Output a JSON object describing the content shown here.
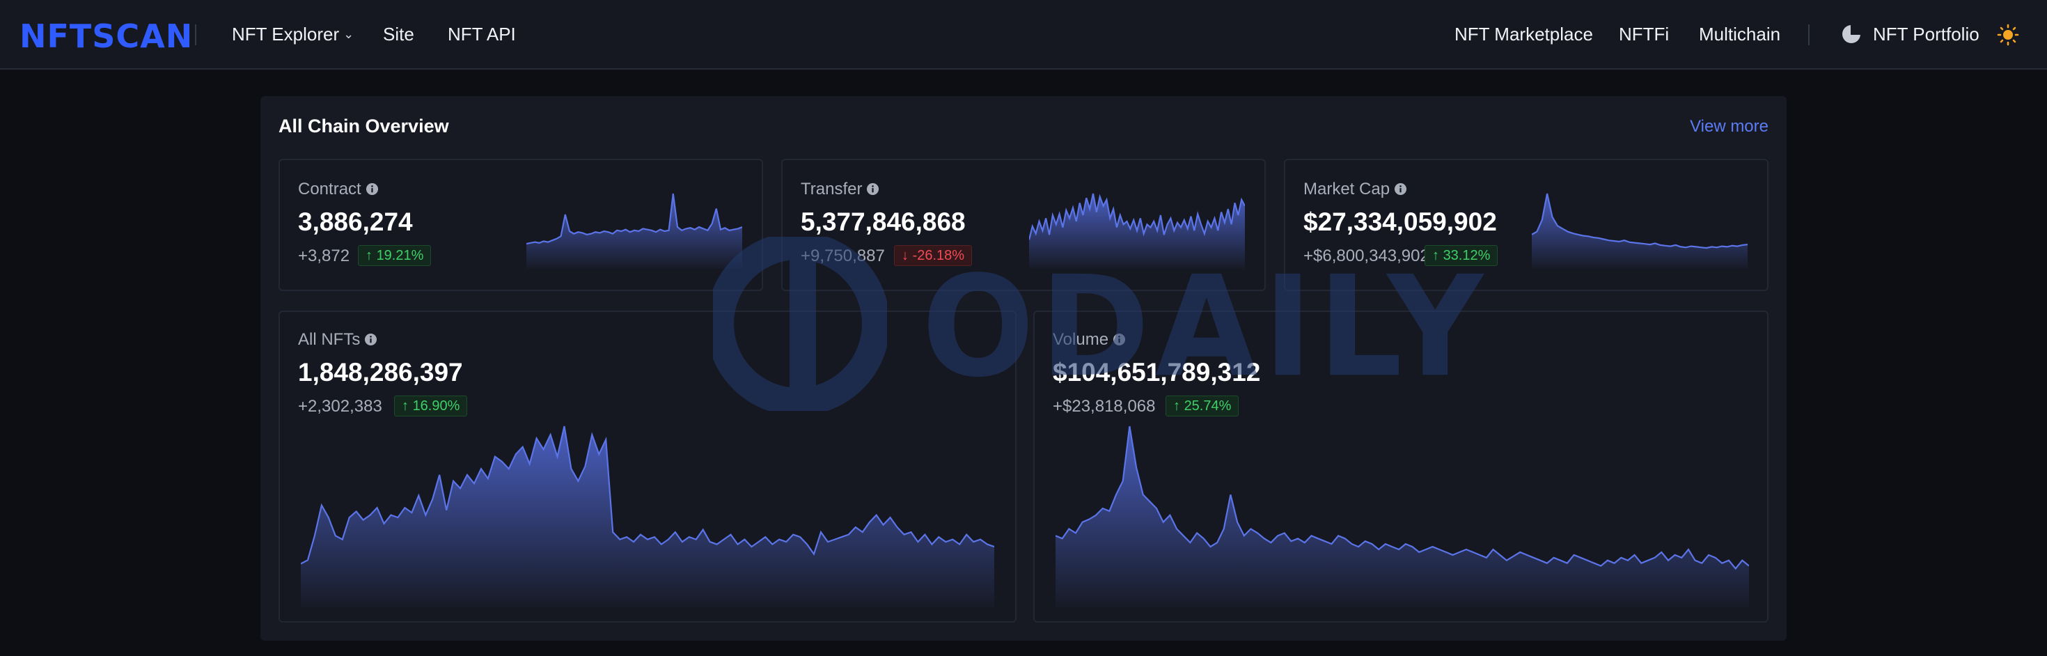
{
  "header": {
    "logo_text": "NFTSCAN",
    "brand_color": "#2f5bff",
    "nav_left": [
      {
        "label": "NFT Explorer",
        "has_dropdown": true
      },
      {
        "label": "Site"
      },
      {
        "label": "NFT API"
      }
    ],
    "nav_right": [
      {
        "label": "NFT Marketplace"
      },
      {
        "label": "NFTFi"
      },
      {
        "label": "Multichain"
      }
    ],
    "portfolio": {
      "label": "NFT Portfolio",
      "icon": "pie-chart-icon"
    },
    "theme_toggle_icon": "sun-icon"
  },
  "overview": {
    "title": "All Chain Overview",
    "view_more": "View more",
    "cards": [
      {
        "label": "Contract",
        "value": "3,886,274",
        "delta": "+3,872",
        "change": "19.21%",
        "direction": "up",
        "sparkline": [
          10,
          11,
          12,
          11,
          13,
          12,
          14,
          16,
          19,
          45,
          25,
          22,
          24,
          23,
          21,
          22,
          24,
          23,
          25,
          24,
          22,
          26,
          25,
          27,
          24,
          26,
          25,
          28,
          27,
          26,
          24,
          27,
          25,
          26,
          70,
          30,
          26,
          28,
          29,
          27,
          30,
          28,
          26,
          34,
          52,
          27,
          29,
          26,
          27,
          28,
          30
        ]
      },
      {
        "label": "Transfer",
        "value": "5,377,846,868",
        "delta": "+9,750,887",
        "change": "-26.18%",
        "direction": "down",
        "sparkline": [
          20,
          42,
          30,
          50,
          35,
          55,
          28,
          60,
          45,
          62,
          40,
          68,
          55,
          72,
          50,
          80,
          60,
          88,
          70,
          95,
          65,
          90,
          75,
          85,
          55,
          70,
          40,
          60,
          45,
          50,
          38,
          52,
          35,
          55,
          30,
          45,
          40,
          50,
          35,
          60,
          28,
          45,
          55,
          35,
          48,
          40,
          52,
          38,
          58,
          35,
          62,
          45,
          30,
          50,
          40,
          55,
          35,
          65,
          48,
          70,
          45,
          80,
          60,
          85,
          75
        ]
      },
      {
        "label": "Market Cap",
        "value": "$27,334,059,902",
        "delta": "+$6,800,343,902",
        "change": "33.12%",
        "direction": "up",
        "sparkline": [
          30,
          35,
          55,
          100,
          60,
          45,
          40,
          35,
          32,
          30,
          28,
          27,
          25,
          24,
          22,
          20,
          19,
          18,
          20,
          17,
          16,
          15,
          14,
          13,
          15,
          12,
          11,
          10,
          12,
          9,
          8,
          10,
          9,
          8,
          7,
          9,
          8,
          10,
          9,
          11,
          10,
          12,
          13
        ]
      },
      {
        "label": "All NFTs",
        "value": "1,848,286,397",
        "delta": "+2,302,383",
        "change": "16.90%",
        "direction": "up",
        "sparkline": [
          22,
          25,
          45,
          70,
          60,
          45,
          42,
          60,
          65,
          58,
          62,
          68,
          55,
          62,
          60,
          68,
          64,
          78,
          62,
          75,
          95,
          66,
          90,
          84,
          95,
          88,
          100,
          92,
          110,
          106,
          100,
          112,
          118,
          104,
          125,
          116,
          128,
          110,
          135,
          100,
          90,
          102,
          128,
          112,
          124,
          48,
          42,
          44,
          40,
          46,
          42,
          44,
          38,
          42,
          48,
          40,
          44,
          42,
          50,
          40,
          38,
          42,
          46,
          38,
          42,
          36,
          40,
          44,
          38,
          42,
          40,
          46,
          44,
          38,
          30,
          48,
          40,
          42,
          44,
          46,
          52,
          48,
          56,
          62,
          54,
          60,
          52,
          46,
          48,
          40,
          46,
          38,
          44,
          40,
          42,
          38,
          46,
          40,
          42,
          38,
          36
        ]
      },
      {
        "label": "Volume",
        "value": "$104,651,789,312",
        "delta": "+$23,818,068",
        "change": "25.74%",
        "direction": "up",
        "sparkline": [
          40,
          38,
          45,
          42,
          50,
          52,
          55,
          60,
          58,
          70,
          80,
          120,
          90,
          70,
          65,
          60,
          50,
          55,
          45,
          40,
          35,
          42,
          38,
          32,
          35,
          45,
          70,
          50,
          40,
          45,
          42,
          38,
          35,
          40,
          42,
          36,
          38,
          35,
          40,
          38,
          36,
          34,
          40,
          38,
          34,
          32,
          36,
          34,
          30,
          34,
          32,
          30,
          34,
          32,
          28,
          30,
          32,
          30,
          28,
          26,
          28,
          30,
          28,
          26,
          24,
          30,
          26,
          22,
          25,
          28,
          26,
          24,
          22,
          20,
          24,
          22,
          20,
          26,
          24,
          22,
          20,
          18,
          22,
          20,
          24,
          22,
          26,
          20,
          22,
          24,
          28,
          22,
          26,
          24,
          30,
          22,
          20,
          26,
          24,
          20,
          22,
          16,
          22,
          18
        ]
      }
    ]
  },
  "watermark": {
    "text": "ODAILY"
  },
  "colors": {
    "chart_line": "#5b74e8",
    "chart_fill_top": "#4d63c9",
    "up": "#3fcf68",
    "down": "#f24b55"
  }
}
